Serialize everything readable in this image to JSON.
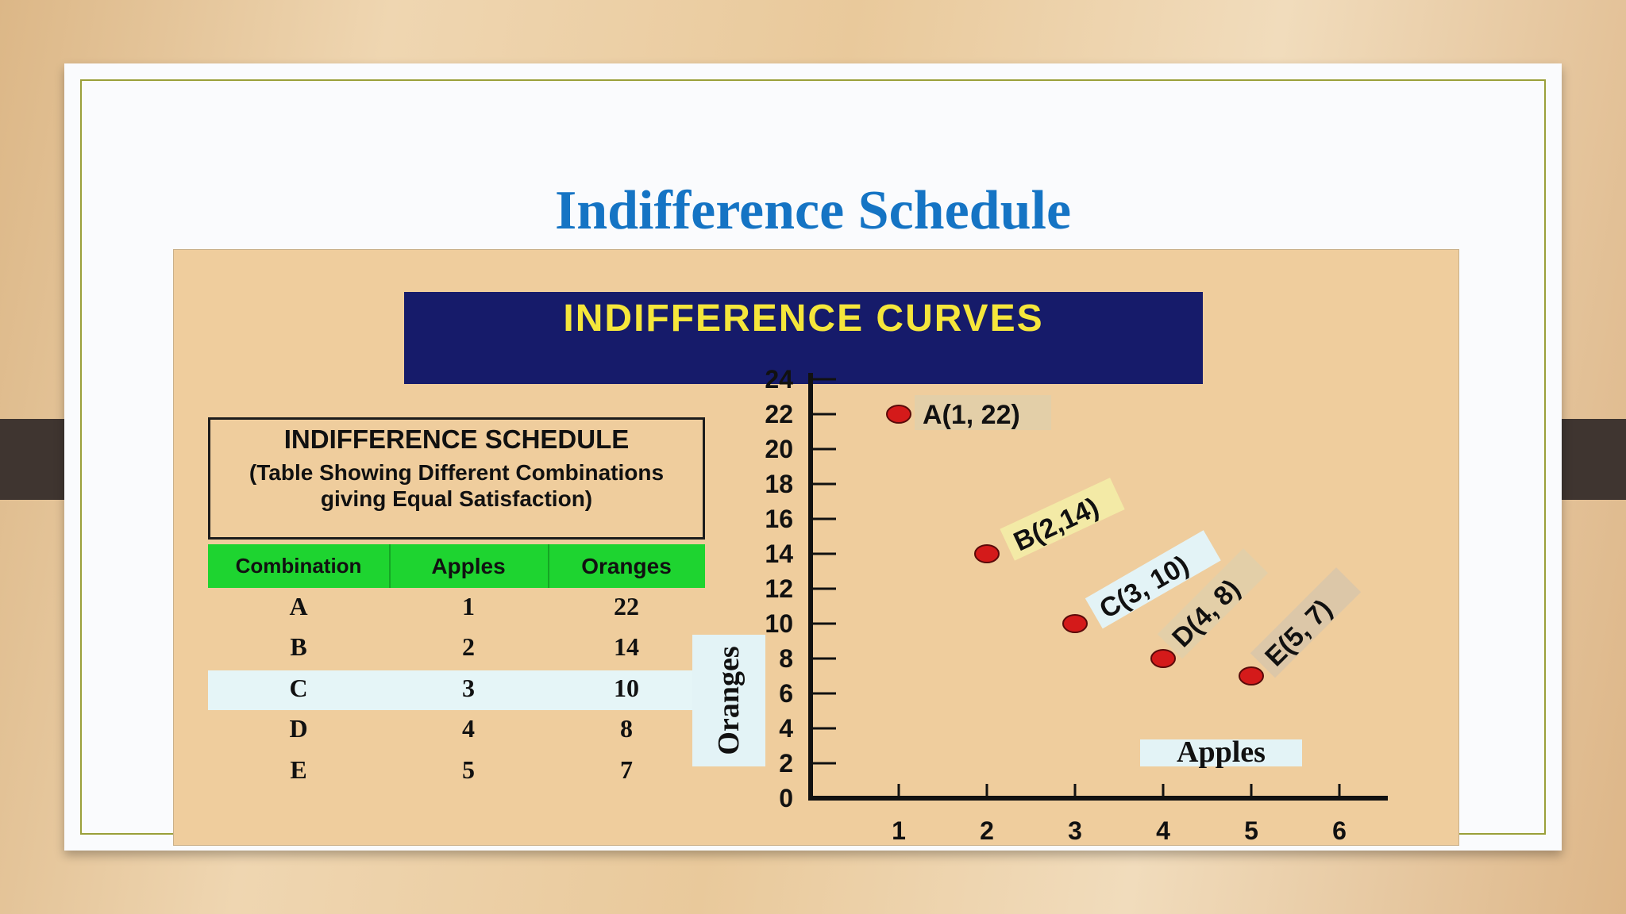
{
  "slide": {
    "title": "Indifference Schedule",
    "colors": {
      "title": "#1574c4",
      "banner_bg": "#161b6a",
      "banner_text": "#f5e63b",
      "panel_bg": "#efcd9d",
      "table_header_bg": "#1ed430",
      "highlight_bg": "#e5f5f7",
      "point": "#d41a1a"
    }
  },
  "banner": {
    "text": "INDIFFERENCE CURVES"
  },
  "schedule": {
    "title": "INDIFFERENCE SCHEDULE",
    "subtitle": "(Table Showing Different Combinations giving Equal Satisfaction)",
    "headers": [
      "Combination",
      "Apples",
      "Oranges"
    ],
    "rows": [
      [
        "A",
        "1",
        "22"
      ],
      [
        "B",
        "2",
        "14"
      ],
      [
        "C",
        "3",
        "10"
      ],
      [
        "D",
        "4",
        "8"
      ],
      [
        "E",
        "5",
        "7"
      ]
    ],
    "highlighted_row": "C"
  },
  "chart_data": {
    "type": "scatter",
    "title": "INDIFFERENCE CURVES",
    "xlabel": "Apples",
    "ylabel": "Oranges",
    "xlim": [
      0,
      6
    ],
    "ylim": [
      0,
      24
    ],
    "x_ticks": [
      "1",
      "2",
      "3",
      "4",
      "5",
      "6"
    ],
    "y_ticks": [
      "0",
      "2",
      "4",
      "6",
      "8",
      "10",
      "12",
      "14",
      "16",
      "18",
      "20",
      "22",
      "24"
    ],
    "grid": false,
    "points": [
      {
        "label": "A(1, 22)",
        "x": 1,
        "y": 22,
        "label_bg": "#e3cfa8"
      },
      {
        "label": "B(2,14)",
        "x": 2,
        "y": 14,
        "label_bg": "#f3eaa6"
      },
      {
        "label": "C(3, 10)",
        "x": 3,
        "y": 10,
        "label_bg": "#e3f3f6"
      },
      {
        "label": "D(4, 8)",
        "x": 4,
        "y": 8,
        "label_bg": "#e3cfa8"
      },
      {
        "label": "E(5, 7)",
        "x": 5,
        "y": 7,
        "label_bg": "#dcc7a8"
      }
    ]
  }
}
